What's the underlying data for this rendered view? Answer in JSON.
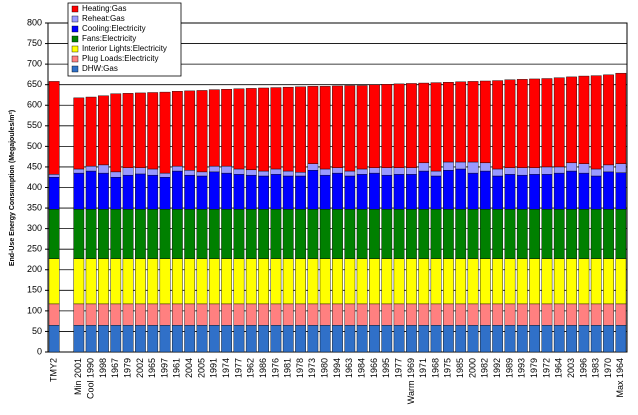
{
  "chart_data": {
    "type": "stacked-bar",
    "y_label": "End-Use Energy Consumption (Megajoules/m²)",
    "categories": [
      "TMY2",
      null,
      "Min 2001",
      "Cool 1990",
      "1998",
      "1967",
      "1979",
      "2002",
      "1965",
      "1997",
      "1961",
      "2004",
      "2005",
      "1991",
      "1974",
      "1977",
      "1962",
      "1986",
      "1976",
      "1981",
      "1978",
      "1973",
      "1980",
      "1994",
      "1963",
      "1984",
      "1966",
      "1995",
      "1977",
      "Warm 1969",
      "1971",
      "1968",
      "1975",
      "1985",
      "2000",
      "1982",
      "1992",
      "1989",
      "1993",
      "1979",
      "1972",
      "1964",
      "2003",
      "1996",
      "1983",
      "1970",
      "Max 1964"
    ],
    "series": [
      {
        "name": "Heating:Gas",
        "color": "#ff0000",
        "values": [
          226,
          null,
          173,
          168,
          168,
          190,
          181,
          182,
          186,
          197,
          182,
          193,
          198,
          186,
          187,
          195,
          198,
          202,
          198,
          204,
          208,
          188,
          201,
          199,
          208,
          203,
          202,
          203,
          204,
          205,
          194,
          215,
          194,
          195,
          196,
          199,
          215,
          214,
          215,
          216,
          215,
          217,
          209,
          213,
          227,
          219,
          220
        ]
      },
      {
        "name": "Reheat:Gas",
        "color": "#9999ff",
        "values": [
          7,
          null,
          10,
          12,
          20,
          13,
          18,
          15,
          15,
          10,
          12,
          12,
          10,
          14,
          17,
          13,
          13,
          12,
          13,
          12,
          9,
          16,
          15,
          13,
          12,
          13,
          13,
          18,
          16,
          16,
          20,
          12,
          20,
          17,
          27,
          20,
          17,
          16,
          18,
          16,
          18,
          15,
          20,
          23,
          17,
          17,
          22
        ]
      },
      {
        "name": "Cooling:Electricity",
        "color": "#0000ff",
        "values": [
          78,
          null,
          88,
          93,
          88,
          78,
          83,
          86,
          83,
          78,
          93,
          83,
          81,
          91,
          88,
          85,
          83,
          81,
          85,
          81,
          81,
          95,
          83,
          88,
          81,
          85,
          88,
          83,
          85,
          85,
          93,
          81,
          95,
          98,
          88,
          93,
          81,
          85,
          83,
          85,
          85,
          88,
          93,
          88,
          81,
          91,
          89
        ]
      },
      {
        "name": "Fans:Electricity",
        "color": "#008000",
        "values": [
          120,
          null,
          120,
          120,
          120,
          120,
          120,
          120,
          120,
          120,
          120,
          120,
          120,
          120,
          120,
          120,
          120,
          120,
          120,
          120,
          120,
          120,
          120,
          120,
          120,
          120,
          120,
          120,
          120,
          120,
          120,
          120,
          120,
          120,
          120,
          120,
          120,
          120,
          120,
          120,
          120,
          120,
          120,
          120,
          120,
          120,
          120
        ]
      },
      {
        "name": "Interior Lights:Electricity",
        "color": "#ffff00",
        "values": [
          110,
          null,
          110,
          110,
          110,
          110,
          110,
          110,
          110,
          110,
          110,
          110,
          110,
          110,
          110,
          110,
          110,
          110,
          110,
          110,
          110,
          110,
          110,
          110,
          110,
          110,
          110,
          110,
          110,
          110,
          110,
          110,
          110,
          110,
          110,
          110,
          110,
          110,
          110,
          110,
          110,
          110,
          110,
          110,
          110,
          110,
          110
        ]
      },
      {
        "name": "Plug Loads:Electricity",
        "color": "#ff8080",
        "values": [
          52,
          null,
          52,
          52,
          52,
          52,
          52,
          52,
          52,
          52,
          52,
          52,
          52,
          52,
          52,
          52,
          52,
          52,
          52,
          52,
          52,
          52,
          52,
          52,
          52,
          52,
          52,
          52,
          52,
          52,
          52,
          52,
          52,
          52,
          52,
          52,
          52,
          52,
          52,
          52,
          52,
          52,
          52,
          52,
          52,
          52,
          52
        ]
      },
      {
        "name": "DHW:Gas",
        "color": "#3070c8",
        "values": [
          65,
          null,
          65,
          65,
          65,
          65,
          65,
          65,
          65,
          65,
          65,
          65,
          65,
          65,
          65,
          65,
          65,
          65,
          65,
          65,
          65,
          65,
          65,
          65,
          65,
          65,
          65,
          65,
          65,
          65,
          65,
          65,
          65,
          65,
          65,
          65,
          65,
          65,
          65,
          65,
          65,
          65,
          65,
          65,
          65,
          65,
          65
        ]
      }
    ],
    "ylim": [
      0,
      800
    ],
    "yticks": [
      0,
      50,
      100,
      150,
      200,
      250,
      300,
      350,
      400,
      450,
      500,
      550,
      600,
      650,
      700,
      750,
      800
    ],
    "grid": true,
    "legend": "top-left"
  }
}
